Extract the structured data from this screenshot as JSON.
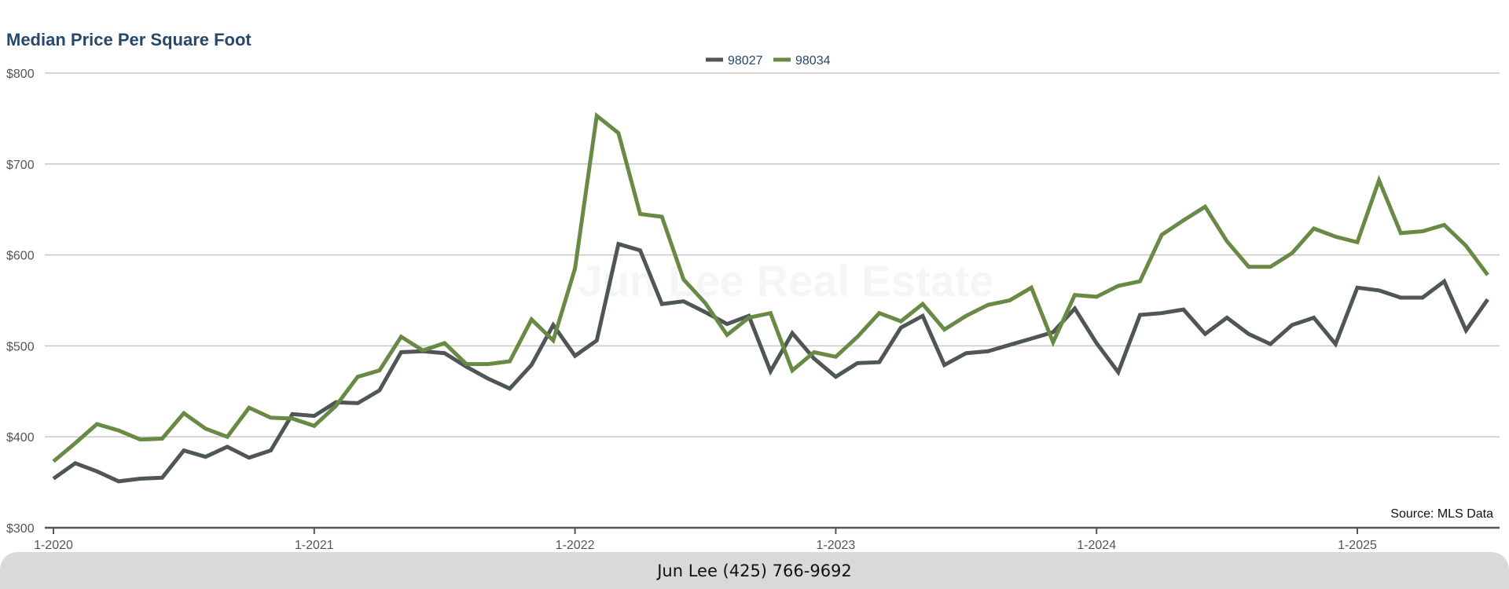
{
  "colors": {
    "series_98027": "#4f5656",
    "series_98034": "#688a45",
    "grid": "#c8c8c8",
    "axis": "#555555",
    "title": "#27476b",
    "footer_bg": "#d9d9d9"
  },
  "watermark": "Jun Lee Real Estate",
  "source": "Source: MLS Data",
  "footer": "Jun Lee (425) 766-9692",
  "chart_data": {
    "type": "line",
    "title": "Median Price Per Square Foot",
    "xlabel": "",
    "ylabel": "",
    "ylim": [
      300,
      800
    ],
    "yticks": [
      {
        "value": 300,
        "label": "$300"
      },
      {
        "value": 400,
        "label": "$400"
      },
      {
        "value": 500,
        "label": "$500"
      },
      {
        "value": 600,
        "label": "$600"
      },
      {
        "value": 700,
        "label": "$700"
      },
      {
        "value": 800,
        "label": "$800"
      }
    ],
    "xrange": [
      "2020-01",
      "2025-07"
    ],
    "xticks": [
      {
        "value": "2020-01",
        "label": "1-2020"
      },
      {
        "value": "2021-01",
        "label": "1-2021"
      },
      {
        "value": "2022-01",
        "label": "1-2022"
      },
      {
        "value": "2023-01",
        "label": "1-2023"
      },
      {
        "value": "2024-01",
        "label": "1-2024"
      },
      {
        "value": "2025-01",
        "label": "1-2025"
      }
    ],
    "grid": true,
    "legend": "top-center",
    "x": [
      "2020-01",
      "2020-02",
      "2020-03",
      "2020-04",
      "2020-05",
      "2020-06",
      "2020-07",
      "2020-08",
      "2020-09",
      "2020-10",
      "2020-11",
      "2020-12",
      "2021-01",
      "2021-02",
      "2021-03",
      "2021-04",
      "2021-05",
      "2021-06",
      "2021-07",
      "2021-08",
      "2021-09",
      "2021-10",
      "2021-11",
      "2021-12",
      "2022-01",
      "2022-02",
      "2022-03",
      "2022-04",
      "2022-05",
      "2022-06",
      "2022-07",
      "2022-08",
      "2022-09",
      "2022-10",
      "2022-11",
      "2022-12",
      "2023-01",
      "2023-02",
      "2023-03",
      "2023-04",
      "2023-05",
      "2023-06",
      "2023-07",
      "2023-08",
      "2023-09",
      "2023-10",
      "2023-11",
      "2023-12",
      "2024-01",
      "2024-02",
      "2024-03",
      "2024-04",
      "2024-05",
      "2024-06",
      "2024-07",
      "2024-08",
      "2024-09",
      "2024-10",
      "2024-11",
      "2024-12",
      "2025-01",
      "2025-02",
      "2025-03",
      "2025-04",
      "2025-05",
      "2025-06",
      "2025-07"
    ],
    "series": [
      {
        "name": "98027",
        "values": [
          354,
          371,
          362,
          351,
          354,
          355,
          385,
          378,
          389,
          377,
          385,
          425,
          423,
          438,
          437,
          451,
          493,
          494,
          492,
          477,
          464,
          453,
          479,
          523,
          489,
          506,
          612,
          605,
          546,
          549,
          537,
          524,
          533,
          472,
          514,
          486,
          466,
          481,
          482,
          520,
          533,
          479,
          492,
          494,
          501,
          508,
          515,
          541,
          503,
          471,
          534,
          536,
          540,
          513,
          531,
          513,
          502,
          523,
          531,
          502,
          564,
          561,
          553,
          553,
          571,
          517,
          551
        ]
      },
      {
        "name": "98034",
        "values": [
          373,
          393,
          414,
          407,
          397,
          398,
          426,
          409,
          400,
          432,
          421,
          420,
          412,
          434,
          466,
          473,
          510,
          495,
          503,
          480,
          480,
          483,
          529,
          506,
          585,
          753,
          734,
          645,
          642,
          573,
          547,
          512,
          531,
          536,
          473,
          493,
          488,
          510,
          536,
          527,
          546,
          518,
          533,
          545,
          550,
          564,
          504,
          556,
          554,
          566,
          571,
          622,
          638,
          653,
          615,
          587,
          587,
          602,
          629,
          620,
          614,
          682,
          624,
          626,
          633,
          610,
          578
        ]
      }
    ]
  }
}
